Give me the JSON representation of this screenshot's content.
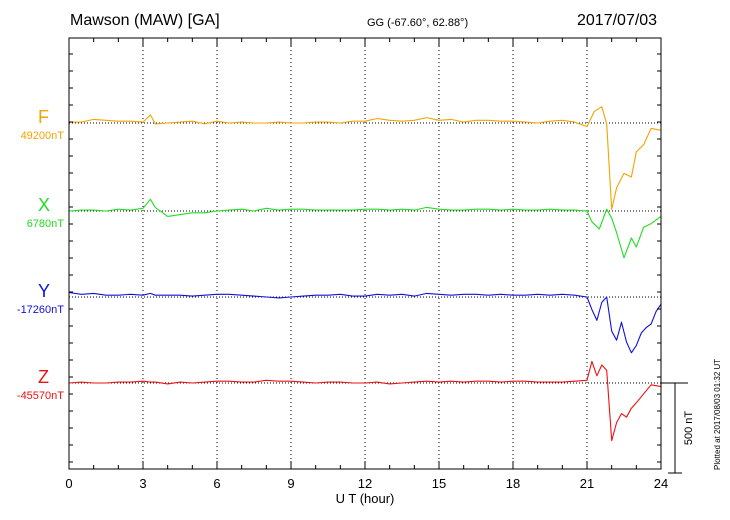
{
  "header": {
    "title": "Mawson (MAW)  [GA]",
    "coords": "GG (-67.60°,  62.88°)",
    "date": "2017/07/03"
  },
  "footer": {
    "plotted": "Plotted at 2017/08/03 01:32 UT"
  },
  "chart_data": {
    "type": "line",
    "title": "Mawson (MAW)  [GA]",
    "subtitle": "GG (-67.60°,  62.88°)",
    "date": "2017/07/03",
    "xlabel": "U T (hour)",
    "xlim": [
      0,
      24
    ],
    "xticks": [
      "0",
      "3",
      "6",
      "9",
      "12",
      "15",
      "18",
      "21",
      "24"
    ],
    "grid": "vertical dotted lines every 3 h",
    "scale_bar_label": "500 nT",
    "scale_bar_nT": 500,
    "series": [
      {
        "name": "F",
        "baseline_label": "49200nT",
        "baseline_nT": 49200,
        "color": "#f2a400",
        "points": [
          [
            0,
            -5
          ],
          [
            0.5,
            -5
          ],
          [
            1,
            -20
          ],
          [
            1.5,
            -15
          ],
          [
            2,
            -10
          ],
          [
            2.5,
            -10
          ],
          [
            3,
            -5
          ],
          [
            3.3,
            -45
          ],
          [
            3.5,
            5
          ],
          [
            4,
            0
          ],
          [
            4.5,
            -5
          ],
          [
            5,
            -10
          ],
          [
            5.5,
            5
          ],
          [
            6,
            -10
          ],
          [
            6.5,
            0
          ],
          [
            7,
            -5
          ],
          [
            7.5,
            0
          ],
          [
            8,
            0
          ],
          [
            8.5,
            -5
          ],
          [
            9,
            0
          ],
          [
            9.5,
            0
          ],
          [
            10,
            -5
          ],
          [
            10.5,
            -5
          ],
          [
            11,
            0
          ],
          [
            11.5,
            -10
          ],
          [
            12,
            -10
          ],
          [
            12.5,
            -25
          ],
          [
            13,
            -15
          ],
          [
            13.5,
            -10
          ],
          [
            14,
            -15
          ],
          [
            14.5,
            -30
          ],
          [
            15,
            -15
          ],
          [
            15.5,
            -20
          ],
          [
            16,
            -5
          ],
          [
            16.5,
            -15
          ],
          [
            17,
            -15
          ],
          [
            17.5,
            -10
          ],
          [
            18,
            -10
          ],
          [
            18.5,
            -5
          ],
          [
            19,
            0
          ],
          [
            19.5,
            -10
          ],
          [
            20,
            -15
          ],
          [
            20.5,
            -5
          ],
          [
            21,
            20
          ],
          [
            21.3,
            -65
          ],
          [
            21.6,
            -90
          ],
          [
            21.8,
            5
          ],
          [
            22,
            480
          ],
          [
            22.2,
            360
          ],
          [
            22.5,
            280
          ],
          [
            22.8,
            300
          ],
          [
            23,
            160
          ],
          [
            23.3,
            120
          ],
          [
            23.6,
            30
          ],
          [
            24,
            40
          ]
        ]
      },
      {
        "name": "X",
        "baseline_label": "6780nT",
        "baseline_nT": 6780,
        "color": "#22dd22",
        "points": [
          [
            0,
            0
          ],
          [
            0.5,
            -5
          ],
          [
            1,
            -5
          ],
          [
            1.5,
            0
          ],
          [
            2,
            -10
          ],
          [
            2.5,
            -5
          ],
          [
            3,
            -15
          ],
          [
            3.3,
            -65
          ],
          [
            3.5,
            -20
          ],
          [
            4,
            30
          ],
          [
            4.5,
            20
          ],
          [
            5,
            10
          ],
          [
            5.5,
            10
          ],
          [
            6,
            0
          ],
          [
            6.5,
            -5
          ],
          [
            7,
            -10
          ],
          [
            7.5,
            0
          ],
          [
            8,
            -15
          ],
          [
            8.5,
            -5
          ],
          [
            9,
            -10
          ],
          [
            9.5,
            -10
          ],
          [
            10,
            -5
          ],
          [
            10.5,
            -5
          ],
          [
            11,
            -5
          ],
          [
            11.5,
            -5
          ],
          [
            12,
            -10
          ],
          [
            12.5,
            -10
          ],
          [
            13,
            -5
          ],
          [
            13.5,
            -10
          ],
          [
            14,
            -5
          ],
          [
            14.5,
            -20
          ],
          [
            15,
            -10
          ],
          [
            15.5,
            -5
          ],
          [
            16,
            -5
          ],
          [
            16.5,
            -10
          ],
          [
            17,
            -10
          ],
          [
            17.5,
            -5
          ],
          [
            18,
            -10
          ],
          [
            18.5,
            -5
          ],
          [
            19,
            -5
          ],
          [
            19.5,
            -10
          ],
          [
            20,
            -5
          ],
          [
            20.5,
            -5
          ],
          [
            21,
            0
          ],
          [
            21.2,
            60
          ],
          [
            21.5,
            100
          ],
          [
            21.8,
            -10
          ],
          [
            22,
            40
          ],
          [
            22.2,
            120
          ],
          [
            22.5,
            260
          ],
          [
            22.8,
            150
          ],
          [
            23,
            200
          ],
          [
            23.3,
            90
          ],
          [
            23.6,
            70
          ],
          [
            24,
            30
          ]
        ]
      },
      {
        "name": "Y",
        "baseline_label": "-17260nT",
        "baseline_nT": -17260,
        "color": "#1111dd",
        "points": [
          [
            0,
            -25
          ],
          [
            0.5,
            -15
          ],
          [
            1,
            -20
          ],
          [
            1.5,
            -10
          ],
          [
            2,
            -10
          ],
          [
            2.5,
            -15
          ],
          [
            3,
            -10
          ],
          [
            3.3,
            -20
          ],
          [
            3.5,
            -10
          ],
          [
            4,
            -10
          ],
          [
            4.5,
            -10
          ],
          [
            5,
            -5
          ],
          [
            5.5,
            -10
          ],
          [
            6,
            -15
          ],
          [
            6.5,
            -15
          ],
          [
            7,
            -10
          ],
          [
            7.5,
            -5
          ],
          [
            8,
            0
          ],
          [
            8.5,
            5
          ],
          [
            9,
            0
          ],
          [
            9.5,
            -5
          ],
          [
            10,
            -10
          ],
          [
            10.5,
            -10
          ],
          [
            11,
            -15
          ],
          [
            11.5,
            -5
          ],
          [
            12,
            -5
          ],
          [
            12.5,
            -15
          ],
          [
            13,
            -10
          ],
          [
            13.5,
            -15
          ],
          [
            14,
            -5
          ],
          [
            14.5,
            -20
          ],
          [
            15,
            -15
          ],
          [
            15.5,
            -10
          ],
          [
            16,
            -15
          ],
          [
            16.5,
            -15
          ],
          [
            17,
            -10
          ],
          [
            17.5,
            -15
          ],
          [
            18,
            -10
          ],
          [
            18.5,
            -10
          ],
          [
            19,
            -15
          ],
          [
            19.5,
            -10
          ],
          [
            20,
            -15
          ],
          [
            20.5,
            -10
          ],
          [
            21,
            0
          ],
          [
            21.2,
            70
          ],
          [
            21.4,
            130
          ],
          [
            21.6,
            30
          ],
          [
            21.8,
            0
          ],
          [
            22,
            190
          ],
          [
            22.2,
            240
          ],
          [
            22.4,
            140
          ],
          [
            22.6,
            250
          ],
          [
            22.8,
            310
          ],
          [
            23,
            270
          ],
          [
            23.2,
            200
          ],
          [
            23.4,
            170
          ],
          [
            23.6,
            150
          ],
          [
            23.8,
            80
          ],
          [
            24,
            40
          ]
        ]
      },
      {
        "name": "Z",
        "baseline_label": "-45570nT",
        "baseline_nT": -45570,
        "color": "#ee1111",
        "points": [
          [
            0,
            0
          ],
          [
            0.5,
            -5
          ],
          [
            1,
            0
          ],
          [
            1.5,
            0
          ],
          [
            2,
            -5
          ],
          [
            2.5,
            -5
          ],
          [
            3,
            -10
          ],
          [
            3.3,
            -5
          ],
          [
            3.5,
            -5
          ],
          [
            4,
            5
          ],
          [
            4.5,
            -5
          ],
          [
            5,
            0
          ],
          [
            5.5,
            -5
          ],
          [
            6,
            -10
          ],
          [
            6.5,
            -10
          ],
          [
            7,
            -5
          ],
          [
            7.5,
            -5
          ],
          [
            8,
            -15
          ],
          [
            8.5,
            -10
          ],
          [
            9,
            -10
          ],
          [
            9.5,
            -5
          ],
          [
            10,
            0
          ],
          [
            10.5,
            -5
          ],
          [
            11,
            -5
          ],
          [
            11.5,
            0
          ],
          [
            12,
            0
          ],
          [
            12.5,
            -5
          ],
          [
            13,
            5
          ],
          [
            13.5,
            0
          ],
          [
            14,
            -5
          ],
          [
            14.5,
            -10
          ],
          [
            15,
            -5
          ],
          [
            15.5,
            -10
          ],
          [
            16,
            -5
          ],
          [
            16.5,
            -10
          ],
          [
            17,
            -10
          ],
          [
            17.5,
            -5
          ],
          [
            18,
            -10
          ],
          [
            18.5,
            -10
          ],
          [
            19,
            -5
          ],
          [
            19.5,
            -5
          ],
          [
            20,
            -5
          ],
          [
            20.5,
            -10
          ],
          [
            21,
            -15
          ],
          [
            21.2,
            -120
          ],
          [
            21.4,
            -40
          ],
          [
            21.6,
            -100
          ],
          [
            21.8,
            -70
          ],
          [
            22,
            320
          ],
          [
            22.2,
            220
          ],
          [
            22.4,
            170
          ],
          [
            22.6,
            190
          ],
          [
            22.8,
            140
          ],
          [
            23,
            110
          ],
          [
            23.3,
            60
          ],
          [
            23.6,
            10
          ],
          [
            24,
            20
          ]
        ]
      }
    ]
  }
}
